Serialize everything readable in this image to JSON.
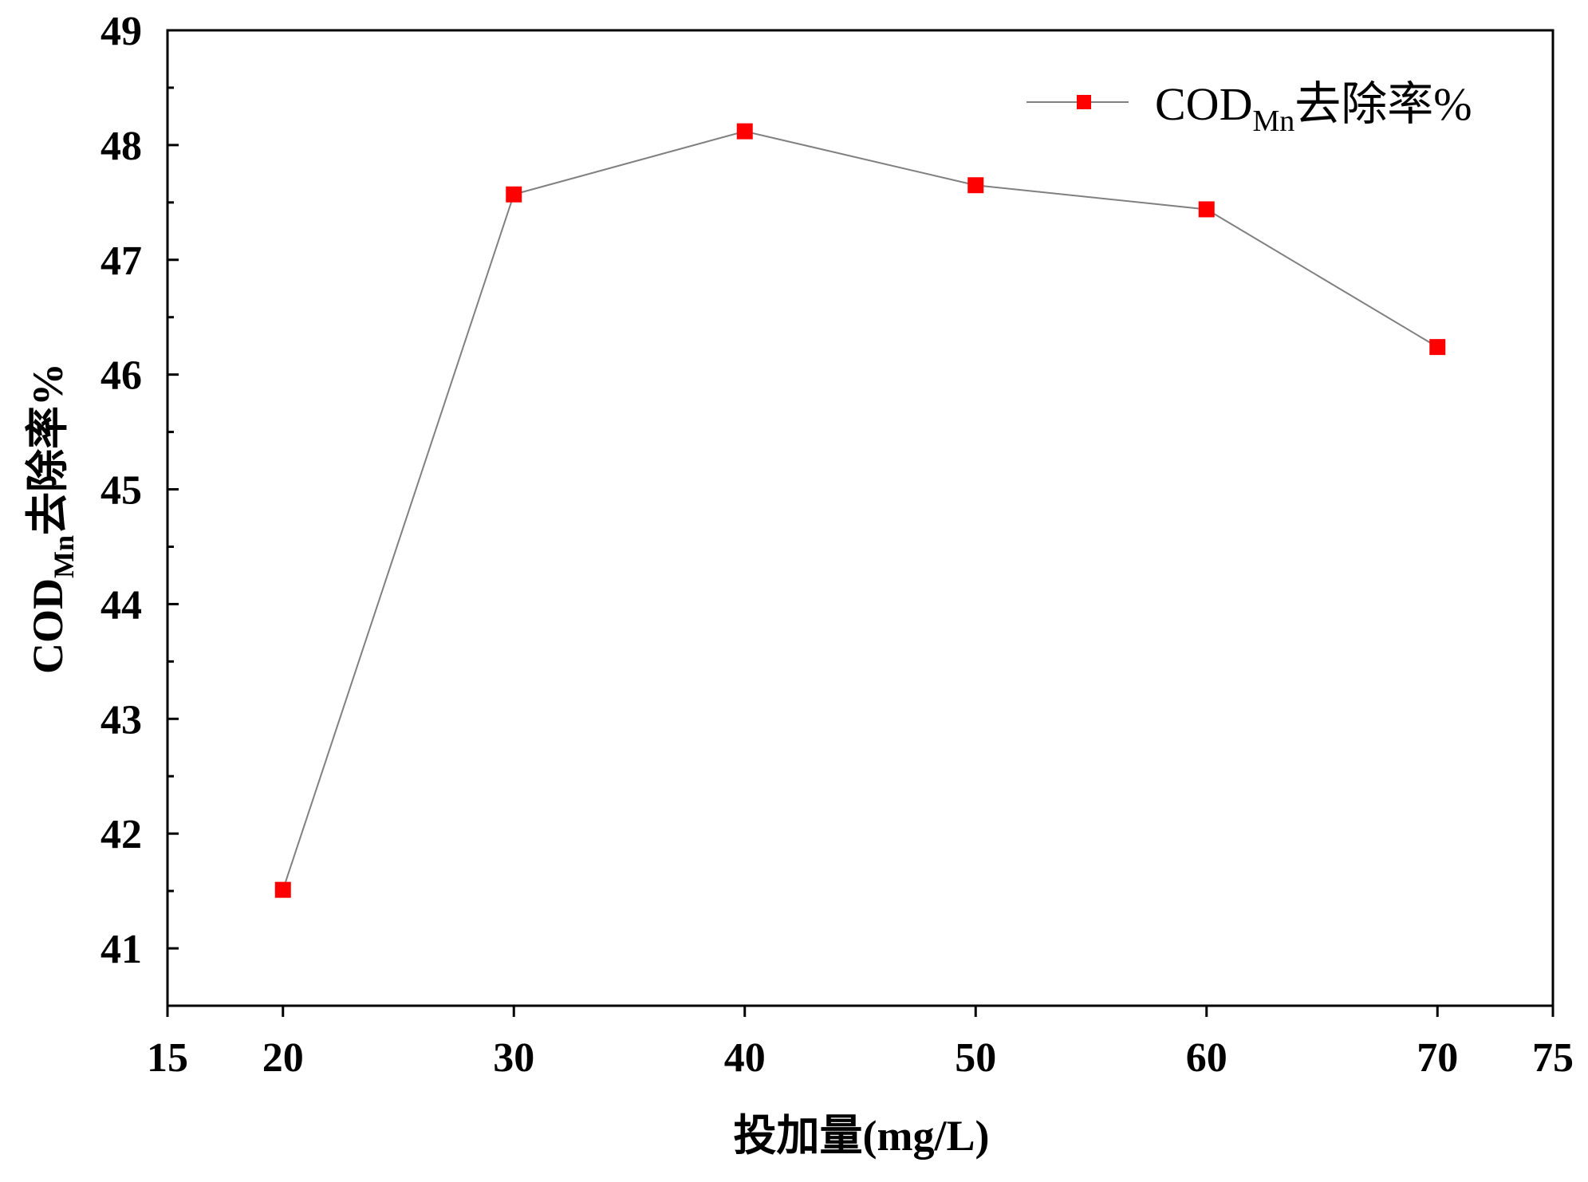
{
  "chart_data": {
    "type": "line",
    "title": "",
    "xlabel": "投加量(mg/L)",
    "ylabel": {
      "main": "COD",
      "sub": "Mn",
      "suffix": "去除率%"
    },
    "xlim": [
      15,
      75
    ],
    "ylim": [
      40.5,
      49
    ],
    "xticks": [
      15,
      20,
      30,
      40,
      50,
      60,
      70,
      75
    ],
    "yticks": [
      41,
      42,
      43,
      44,
      45,
      46,
      47,
      48,
      49
    ],
    "grid": false,
    "legend_position": "top-right",
    "series": [
      {
        "name": {
          "main": "COD",
          "sub": "Mn",
          "suffix": "去除率%"
        },
        "line_color": "#808080",
        "marker_color": "#ff0000",
        "marker": "square",
        "x": [
          20,
          30,
          40,
          50,
          60,
          70
        ],
        "y": [
          41.51,
          47.57,
          48.12,
          47.65,
          47.44,
          46.24
        ]
      }
    ]
  }
}
